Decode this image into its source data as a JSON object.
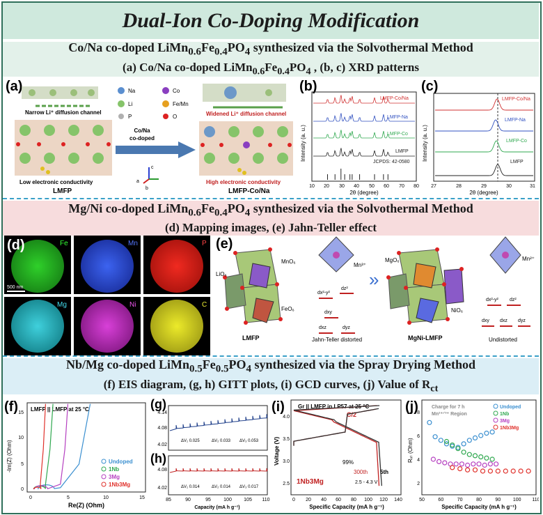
{
  "title": "Dual-Ion Co-Doping Modification",
  "sections": {
    "s1": {
      "line1_pre": "Co/Na co-doped LiMn",
      "line1_post": " synthesized via the Solvothermal Method",
      "line2_pre": "(a) Co/Na co-doped LiMn",
      "line2_post": " , (b, c) XRD patterns"
    },
    "s2": {
      "line1_pre": "Mg/Ni co-doped LiMn",
      "line1_post": " synthesized via the Solvothermal Method",
      "line2": "(d) Mapping images, (e) Jahn-Teller effect"
    },
    "s3": {
      "line1_pre": "Nb/Mg co-doped LiMn",
      "line1_post": " synthesized via the Spray Drying Method",
      "line2_pre": "(f) EIS diagram, (g, h) GITT plots, (i) GCD curves, (j) Value of R",
      "line2_sub": "ct"
    }
  },
  "formula": {
    "s1": {
      "mn": "0.6",
      "fe": "0.4",
      "po": "4"
    },
    "s3": {
      "mn": "0.5",
      "fe": "0.5",
      "po": "4"
    }
  },
  "panel_a": {
    "label": "(a)",
    "narrow": "Narrow Li⁺ diffusion channel",
    "widened": "Widened Li⁺ diffusion channel",
    "low_cond": "Low electronic conductivity",
    "high_cond": "High electronic conductivity",
    "left_name": "LMFP",
    "right_name": "LMFP-Co/Na",
    "arrow_text1": "Co/Na",
    "arrow_text2": "co-doped",
    "legend": [
      "Na",
      "Co",
      "Li",
      "Fe/Mn",
      "P",
      "O"
    ],
    "axes": [
      "c",
      "a",
      "b"
    ]
  },
  "panel_b": {
    "label": "(b)",
    "ylabel": "Intensity (a. u.)",
    "xlabel": "2θ (degree)",
    "xticks": [
      "10",
      "20",
      "30",
      "40",
      "50",
      "60",
      "70",
      "80"
    ],
    "traces": [
      "LMFP-Co/Na",
      "LMFP-Na",
      "LMFP-Co",
      "LMFP"
    ],
    "jcpds": "JCPDS: 42-0580"
  },
  "panel_c": {
    "label": "(c)",
    "ylabel": "Intensity (a. u.)",
    "xlabel": "2θ (degree)",
    "xticks": [
      "27",
      "28",
      "29",
      "30",
      "31"
    ],
    "traces": [
      "LMFP-Co/Na",
      "LMFP-Na",
      "LMFP-Co",
      "LMFP"
    ]
  },
  "panel_d": {
    "label": "(d)",
    "elements": [
      "Fe",
      "Mn",
      "P",
      "Mg",
      "Ni",
      "C"
    ],
    "scale": "500 nm",
    "colors": [
      "#23c41f",
      "#2b4fe0",
      "#e32119",
      "#23b7c4",
      "#c22ec2",
      "#d9d51d"
    ]
  },
  "panel_e": {
    "label": "(e)",
    "labels": [
      "LiO₆",
      "MnO₆",
      "FeO₆",
      "MgO₆",
      "NiO₆"
    ],
    "ion1": "Mn³⁺",
    "ion2": "Mn²⁺",
    "lmfp": "LMFP",
    "jt": "Jahn-Teller distorted",
    "mgni": "MgNi-LMFP",
    "und": "Undistorted",
    "orbitals": [
      "dx²-y²",
      "dz²",
      "dxy",
      "dxz",
      "dyz"
    ]
  },
  "panel_f": {
    "label": "(f)",
    "title": "LMFP || LMFP at 25 °C",
    "ylabel": "-Im(Z) (Ohm)",
    "xlabel": "Re(Z) (Ohm)",
    "xticks": [
      "0",
      "5",
      "10",
      "15"
    ],
    "yticks": [
      "0",
      "5",
      "10",
      "15"
    ],
    "legend": [
      "Undoped",
      "1Nb",
      "3Mg",
      "1Nb3Mg"
    ],
    "colors": [
      "#3a8fd0",
      "#2fa84f",
      "#b53fc0",
      "#e0302a"
    ]
  },
  "panel_g": {
    "label": "(g)",
    "yticks": [
      "4.14",
      "4.08",
      "4.02"
    ],
    "dv": [
      "ΔV₁ 0.025",
      "ΔV₂ 0.033",
      "ΔV₃ 0.053"
    ]
  },
  "panel_h": {
    "label": "(h)",
    "yticks": [
      "4.08",
      "4.02"
    ],
    "dv": [
      "ΔV₁ 0.014",
      "ΔV₂ 0.014",
      "ΔV₃ 0.017"
    ],
    "xticks": [
      "85",
      "90",
      "95",
      "100",
      "105",
      "110"
    ],
    "xlabel": "Capacity (mA h g⁻¹)"
  },
  "panel_i": {
    "label": "(i)",
    "title": "Gr || LMFP in LP57 at 25 °C",
    "rate": "C/2",
    "ylabel": "Voltage (V)",
    "xlabel": "Specific Capacity (mA h g⁻¹)",
    "xticks": [
      "0",
      "20",
      "40",
      "60",
      "80",
      "100",
      "120",
      "140"
    ],
    "yticks": [
      "2.5",
      "3.0",
      "3.5",
      "4.0"
    ],
    "retention": "99%",
    "cycle": "300th",
    "cycle5": "5th",
    "window": "2.5 - 4.3 V",
    "sample": "1Nb3Mg"
  },
  "panel_j": {
    "label": "(j)",
    "note1": "Charge for 7 h",
    "note2": "Mn²⁺ᐟ³⁺ Region",
    "ylabel": "Rₓₜ (Ohm)",
    "xlabel": "Specific Capacity (mA h g⁻¹)",
    "xticks": [
      "50",
      "60",
      "70",
      "80",
      "90",
      "100",
      "110"
    ],
    "yticks": [
      "2",
      "4",
      "6",
      "8"
    ],
    "legend": [
      "Undoped",
      "1Nb",
      "3Mg",
      "1Nb3Mg"
    ],
    "colors": [
      "#3a8fd0",
      "#2fa84f",
      "#b53fc0",
      "#e0302a"
    ]
  },
  "chart_data": [
    {
      "type": "scatter",
      "title": "",
      "xlabel": "Specific Capacity (mA h g⁻¹)",
      "ylabel": "Rct (Ohm)",
      "xlim": [
        50,
        110
      ],
      "ylim": [
        1,
        9
      ],
      "series": [
        {
          "name": "Undoped",
          "x": [
            54,
            57,
            60,
            63,
            66,
            69,
            72,
            75,
            78,
            81,
            84,
            87
          ],
          "y": [
            7.1,
            5.9,
            5.6,
            5.3,
            5.1,
            5.0,
            5.3,
            5.6,
            5.8,
            6.0,
            6.2,
            6.3
          ]
        },
        {
          "name": "1Nb",
          "x": [
            63,
            66,
            69,
            72,
            75,
            78,
            81,
            84,
            87
          ],
          "y": [
            5.5,
            5.2,
            4.9,
            4.6,
            4.4,
            4.3,
            4.2,
            4.1,
            4.0
          ]
        },
        {
          "name": "3Mg",
          "x": [
            56,
            59,
            62,
            65,
            68,
            71,
            74,
            77,
            80,
            83,
            86,
            89
          ],
          "y": [
            4.0,
            3.8,
            3.7,
            3.6,
            3.6,
            3.6,
            3.5,
            3.6,
            3.6,
            3.5,
            3.6,
            3.6
          ]
        },
        {
          "name": "1Nb3Mg",
          "x": [
            66,
            70,
            74,
            78,
            82,
            86,
            90,
            94,
            98,
            102,
            106
          ],
          "y": [
            3.3,
            3.2,
            3.1,
            3.1,
            3.0,
            3.0,
            3.0,
            3.0,
            3.0,
            3.0,
            3.0
          ]
        }
      ]
    }
  ]
}
